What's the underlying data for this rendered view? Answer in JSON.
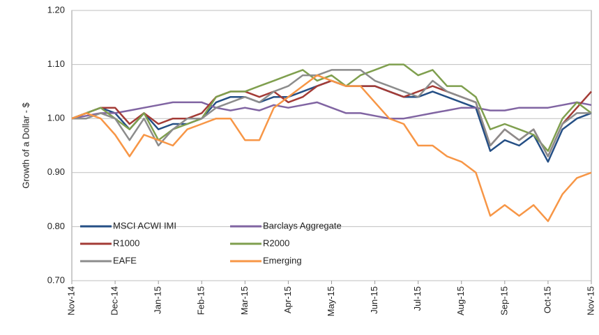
{
  "chart_data": {
    "type": "line",
    "ylabel": "Growth of a Dollar - $",
    "categories": [
      "Nov-14",
      null,
      null,
      "Dec-14",
      null,
      null,
      "Jan-15",
      null,
      null,
      "Feb-15",
      null,
      null,
      "Mar-15",
      null,
      null,
      "Apr-15",
      null,
      null,
      "May-15",
      null,
      null,
      "Jun-15",
      null,
      null,
      "Jul-15",
      null,
      null,
      "Aug-15",
      null,
      null,
      "Sep-15",
      null,
      null,
      "Oct-15",
      null,
      null,
      "Nov-15"
    ],
    "ylim": [
      0.7,
      1.2
    ],
    "yticks": [
      {
        "value": 0.7,
        "label": "0.70"
      },
      {
        "value": 0.8,
        "label": "0.80"
      },
      {
        "value": 0.9,
        "label": "0.90"
      },
      {
        "value": 1.0,
        "label": "1.00"
      },
      {
        "value": 1.1,
        "label": "1.10"
      },
      {
        "value": 1.2,
        "label": "1.20"
      }
    ],
    "grid": true,
    "series": [
      {
        "name": "MSCI ACWI IMI",
        "color": "#254f85",
        "values": [
          1.0,
          1.01,
          1.02,
          1.01,
          0.98,
          1.01,
          0.98,
          0.99,
          0.99,
          1.0,
          1.03,
          1.04,
          1.04,
          1.03,
          1.04,
          1.04,
          1.05,
          1.06,
          1.07,
          1.06,
          1.06,
          1.06,
          1.05,
          1.04,
          1.04,
          1.05,
          1.04,
          1.03,
          1.02,
          0.94,
          0.96,
          0.95,
          0.97,
          0.92,
          0.98,
          1.0,
          1.01
        ]
      },
      {
        "name": "Barclays Aggregate",
        "color": "#8064a2",
        "values": [
          1.0,
          1.005,
          1.01,
          1.01,
          1.015,
          1.02,
          1.025,
          1.03,
          1.03,
          1.03,
          1.02,
          1.015,
          1.02,
          1.015,
          1.025,
          1.02,
          1.025,
          1.03,
          1.02,
          1.01,
          1.01,
          1.005,
          1.0,
          1.0,
          1.005,
          1.01,
          1.015,
          1.02,
          1.02,
          1.015,
          1.015,
          1.02,
          1.02,
          1.02,
          1.025,
          1.03,
          1.025
        ]
      },
      {
        "name": "R1000",
        "color": "#a33b36",
        "values": [
          1.0,
          1.01,
          1.02,
          1.02,
          0.99,
          1.01,
          0.99,
          1.0,
          1.0,
          1.01,
          1.04,
          1.05,
          1.05,
          1.04,
          1.05,
          1.03,
          1.04,
          1.06,
          1.07,
          1.06,
          1.06,
          1.06,
          1.05,
          1.04,
          1.05,
          1.06,
          1.05,
          1.04,
          1.03,
          0.95,
          0.98,
          0.96,
          0.98,
          0.93,
          0.99,
          1.02,
          1.05
        ]
      },
      {
        "name": "R2000",
        "color": "#7f9f4e",
        "values": [
          1.0,
          1.01,
          1.02,
          1.0,
          0.98,
          1.01,
          0.96,
          0.98,
          0.99,
          1.0,
          1.04,
          1.05,
          1.05,
          1.06,
          1.07,
          1.08,
          1.09,
          1.07,
          1.08,
          1.06,
          1.08,
          1.09,
          1.1,
          1.1,
          1.08,
          1.09,
          1.06,
          1.06,
          1.04,
          0.98,
          0.99,
          0.98,
          0.97,
          0.94,
          1.0,
          1.03,
          1.01
        ]
      },
      {
        "name": "EAFE",
        "color": "#8c8c8c",
        "values": [
          1.0,
          1.0,
          1.01,
          1.0,
          0.96,
          1.0,
          0.95,
          0.98,
          1.0,
          1.0,
          1.02,
          1.03,
          1.04,
          1.03,
          1.05,
          1.06,
          1.08,
          1.08,
          1.09,
          1.09,
          1.09,
          1.07,
          1.06,
          1.05,
          1.04,
          1.07,
          1.05,
          1.04,
          1.03,
          0.95,
          0.98,
          0.96,
          0.98,
          0.93,
          0.99,
          1.01,
          1.01
        ]
      },
      {
        "name": "Emerging",
        "color": "#f79646",
        "values": [
          1.0,
          1.01,
          1.0,
          0.97,
          0.93,
          0.97,
          0.96,
          0.95,
          0.98,
          0.99,
          1.0,
          1.0,
          0.96,
          0.96,
          1.02,
          1.04,
          1.06,
          1.08,
          1.07,
          1.06,
          1.06,
          1.03,
          1.0,
          0.99,
          0.95,
          0.95,
          0.93,
          0.92,
          0.9,
          0.82,
          0.84,
          0.82,
          0.84,
          0.81,
          0.86,
          0.89,
          0.9
        ]
      }
    ]
  }
}
